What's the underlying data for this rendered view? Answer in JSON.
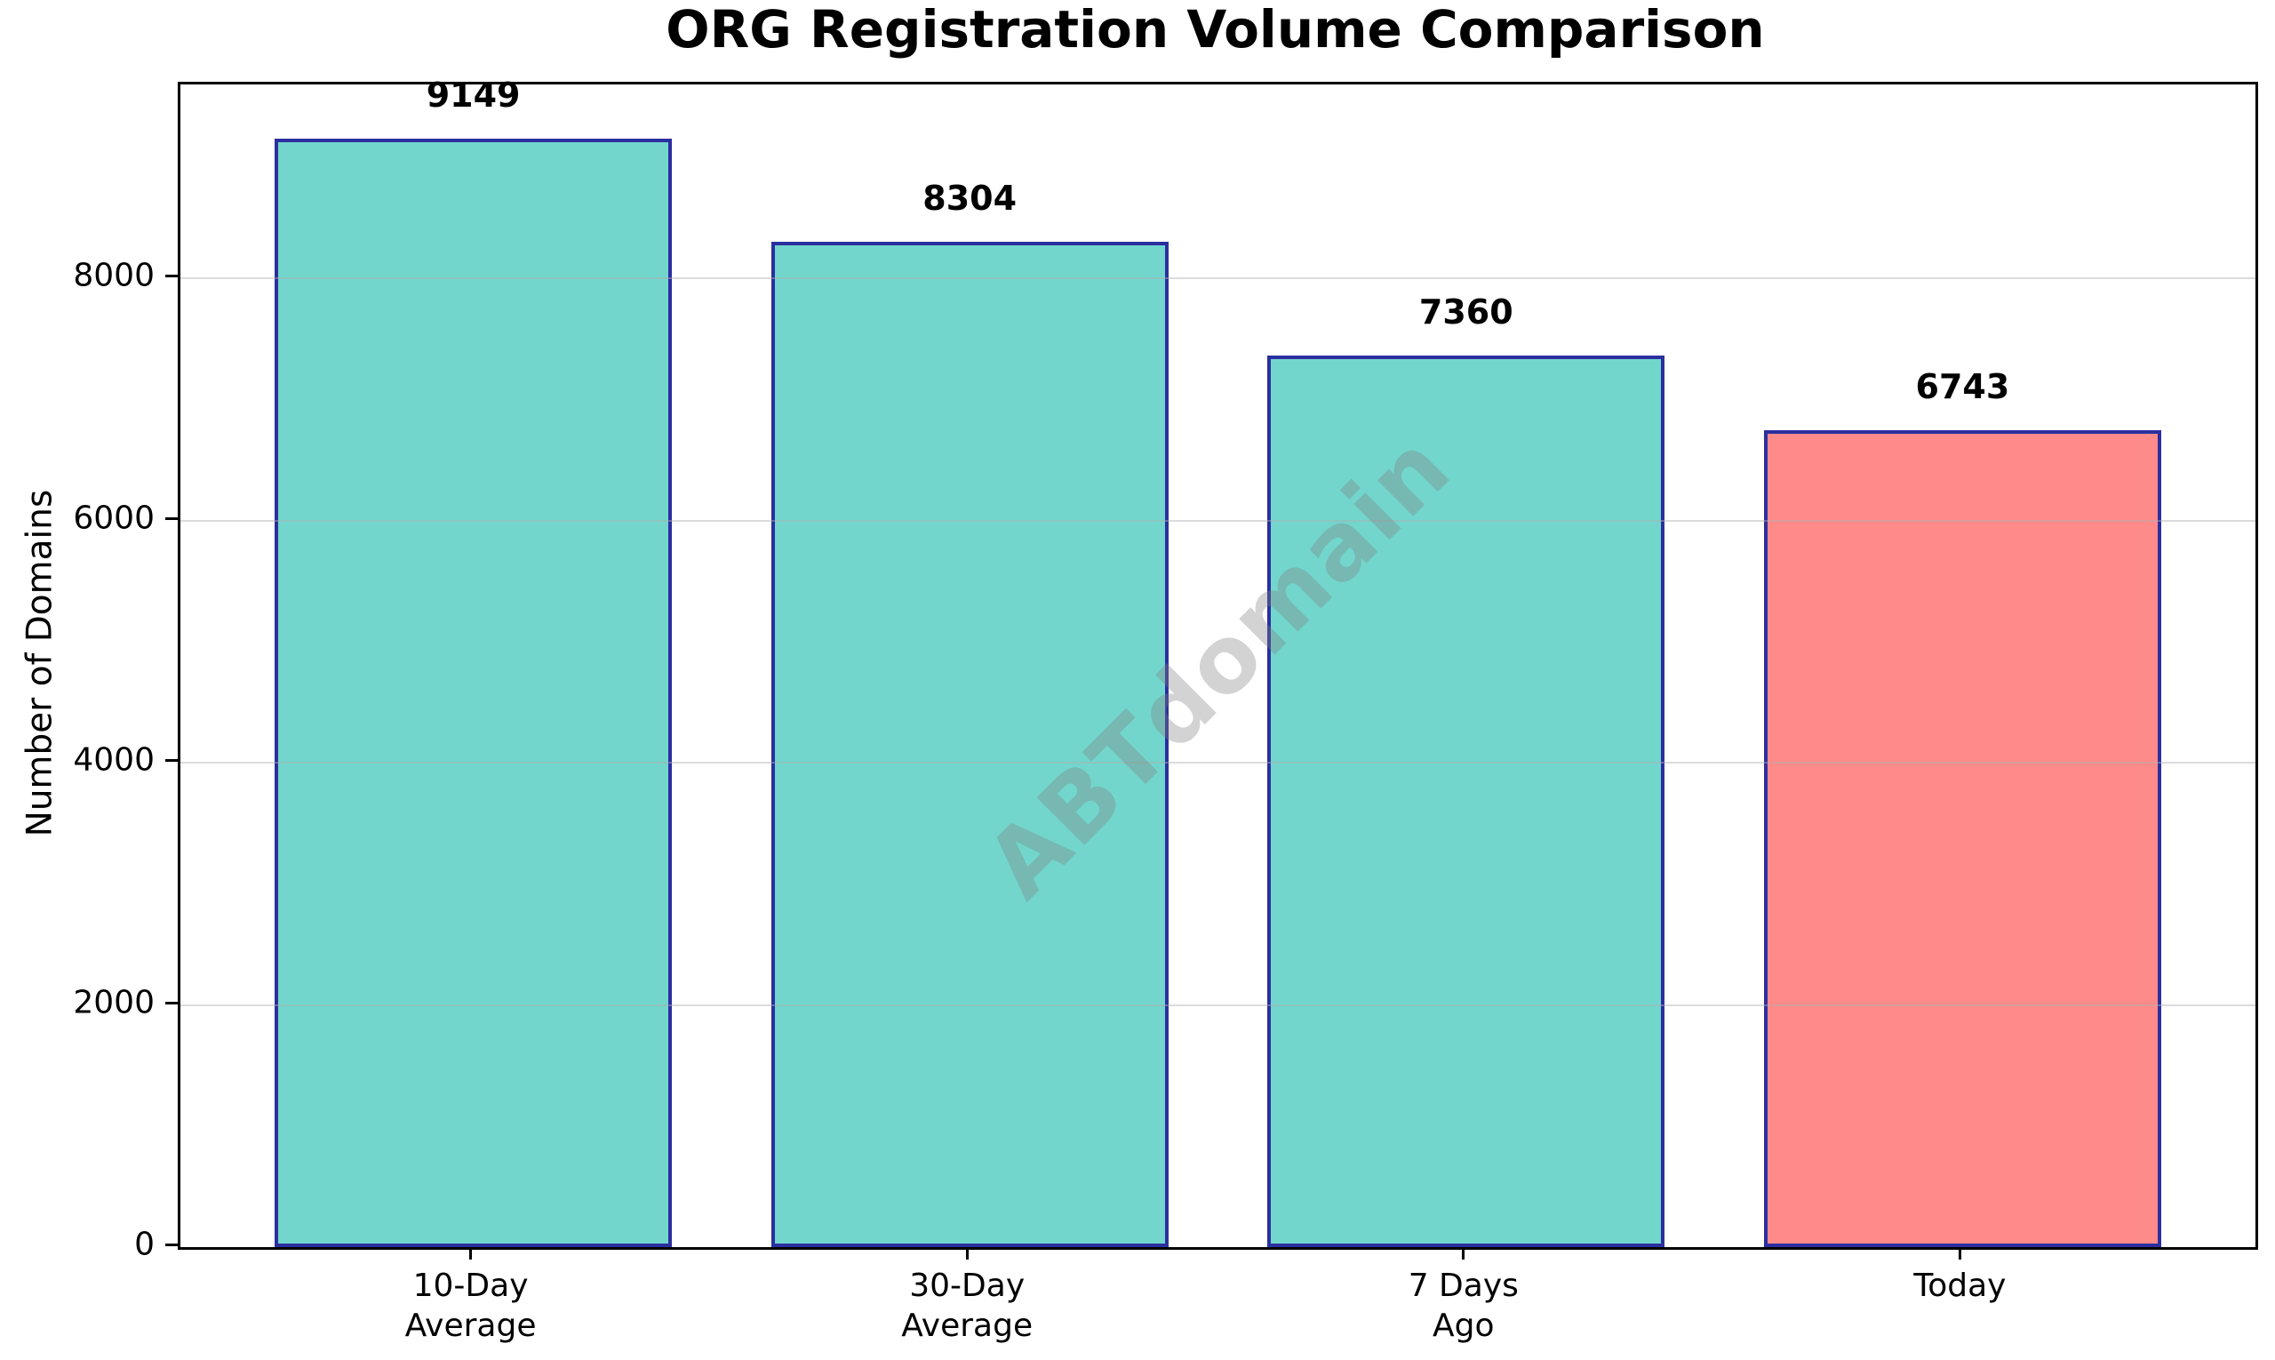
{
  "figure": {
    "background": "#FFFFFF"
  },
  "chart_data": {
    "type": "bar",
    "title": "ORG Registration Volume Comparison",
    "xlabel": "",
    "ylabel": "Number of Domains",
    "categories": [
      "10-Day Average",
      "30-Day Average",
      "7 Days Ago",
      "Today"
    ],
    "category_lines": [
      [
        "10-Day",
        "Average"
      ],
      [
        "30-Day",
        "Average"
      ],
      [
        "7 Days",
        "Ago"
      ],
      [
        "Today"
      ]
    ],
    "values": [
      9149,
      8304,
      7360,
      6743
    ],
    "value_labels": [
      "9149",
      "8304",
      "7360",
      "6743"
    ],
    "bar_colors": [
      "#72D6CD",
      "#72D6CD",
      "#72D6CD",
      "#FF8A8A"
    ],
    "bar_edge_color": "#2B2F9F",
    "ylim": [
      0,
      9600
    ],
    "yticks": [
      0,
      2000,
      4000,
      6000,
      8000
    ],
    "grid": "horizontal",
    "grid_color": "#B0B0B0",
    "legend": "none",
    "watermark": "ABTdomain",
    "watermark_color": "#808080"
  }
}
